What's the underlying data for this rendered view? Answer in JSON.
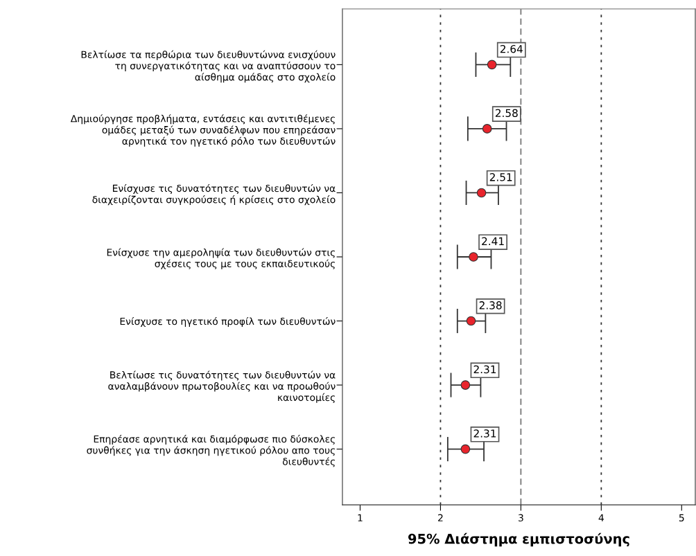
{
  "chart_data": {
    "type": "scatter",
    "orientation": "horizontal",
    "xlabel": "95% Διάστημα εμπιστοσύνης",
    "categories": [
      "Βελτίωσε τα περθώρια των διευθυντώννα ενισχύουν\nτη συνεργατικότητας και να αναπτύσσουν το\nαίσθημα ομάδας στο σχολείο",
      "Δημιούργησε προβλήματα, εντάσεις και αντιτιθέμενες\nομάδες μεταξύ των συναδέλφων που επηρεάσαν\nαρνητικά τον ηγετικό ρόλο των διευθυντών",
      "Ενίσχυσε τις δυνατότητες των διευθυντών να\nδιαχειρίζονται συγκρούσεις ή κρίσεις στο σχολείο",
      "Ενίσχυσε την αμεροληψία των διευθυντών στις\nσχέσεις τους με τους εκπαιδευτικούς",
      "Ενίσχυσε το ηγετικό προφίλ των διευθυντών",
      "Βελτίωσε τις δυνατότητες των διευθυντών να\nαναλαμβάνουν πρωτοβουλίες και να προωθούν\nκαινοτομίες",
      "Επηρέασε αρνητικά και διαμόρφωσε πιο δύσκολες\nσυνθήκες για την άσκηση ηγετικού ρόλου απο τους\nδιευθυντές"
    ],
    "values": [
      2.64,
      2.58,
      2.51,
      2.41,
      2.38,
      2.31,
      2.31
    ],
    "errors": [
      [
        2.44,
        2.87
      ],
      [
        2.34,
        2.82
      ],
      [
        2.32,
        2.72
      ],
      [
        2.21,
        2.63
      ],
      [
        2.21,
        2.56
      ],
      [
        2.13,
        2.5
      ],
      [
        2.09,
        2.54
      ]
    ],
    "color": "#e8242c",
    "marker": "circle",
    "data_labels": true,
    "xlim": [
      0.78,
      5.17
    ],
    "xticks": [
      1,
      2,
      3,
      4,
      5
    ],
    "grid": false,
    "ref_lines": [
      {
        "axis": "x",
        "value": 2,
        "line_style": "dotted",
        "color": "#333333"
      },
      {
        "axis": "x",
        "value": 3,
        "line_style": "dashed",
        "color": "#777777"
      },
      {
        "axis": "x",
        "value": 4,
        "line_style": "dotted",
        "color": "#333333"
      }
    ]
  }
}
